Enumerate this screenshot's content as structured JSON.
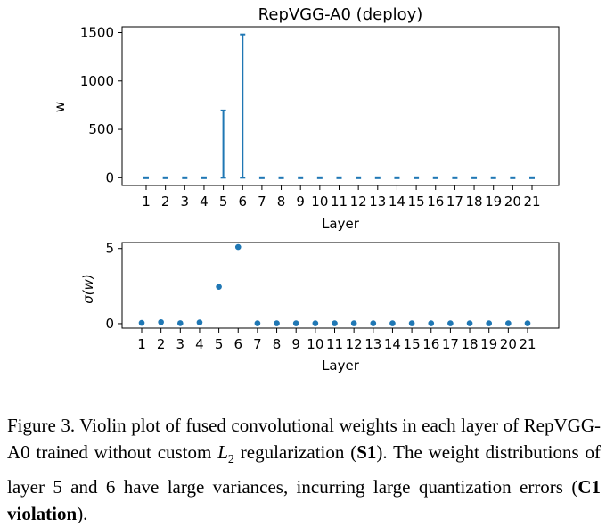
{
  "chart_data": [
    {
      "type": "violin",
      "title": "RepVGG-A0 (deploy)",
      "xlabel": "Layer",
      "ylabel": "w",
      "categories": [
        "1",
        "2",
        "3",
        "4",
        "5",
        "6",
        "7",
        "8",
        "9",
        "10",
        "11",
        "12",
        "13",
        "14",
        "15",
        "16",
        "17",
        "18",
        "19",
        "20",
        "21"
      ],
      "ranges": [
        [
          -5,
          5
        ],
        [
          -5,
          5
        ],
        [
          -5,
          5
        ],
        [
          -5,
          5
        ],
        [
          0,
          695
        ],
        [
          0,
          1480
        ],
        [
          -5,
          5
        ],
        [
          -5,
          5
        ],
        [
          -5,
          5
        ],
        [
          -5,
          5
        ],
        [
          -5,
          5
        ],
        [
          -5,
          5
        ],
        [
          -5,
          5
        ],
        [
          -5,
          5
        ],
        [
          -5,
          5
        ],
        [
          -5,
          5
        ],
        [
          -5,
          5
        ],
        [
          -5,
          5
        ],
        [
          -5,
          5
        ],
        [
          -5,
          5
        ],
        [
          -5,
          5
        ]
      ],
      "yticks": [
        0,
        500,
        1000,
        1500
      ],
      "ylim": [
        -80,
        1560
      ],
      "color": "#1f77b4"
    },
    {
      "type": "scatter",
      "xlabel": "Layer",
      "ylabel": "σ(w)",
      "categories": [
        "1",
        "2",
        "3",
        "4",
        "5",
        "6",
        "7",
        "8",
        "9",
        "10",
        "11",
        "12",
        "13",
        "14",
        "15",
        "16",
        "17",
        "18",
        "19",
        "20",
        "21"
      ],
      "values": [
        0.05,
        0.1,
        0.03,
        0.08,
        2.45,
        5.1,
        0.02,
        0.02,
        0.02,
        0.02,
        0.02,
        0.02,
        0.02,
        0.02,
        0.02,
        0.02,
        0.02,
        0.02,
        0.02,
        0.02,
        0.02
      ],
      "yticks": [
        0,
        5
      ],
      "ylim": [
        -0.3,
        5.4
      ],
      "color": "#1f77b4"
    }
  ],
  "caption": {
    "prefix": "Figure 3. Violin plot of fused convolutional weights in each layer of RepVGG-A0 trained without custom ",
    "math_var": "L",
    "math_sub": "2",
    "mid": " regularization (",
    "bold1": "S1",
    "after_bold1": "). The weight distributions of layer 5 and 6 have large variances, incurring large quantization errors (",
    "bold2": "C1 violation",
    "suffix": ")."
  }
}
